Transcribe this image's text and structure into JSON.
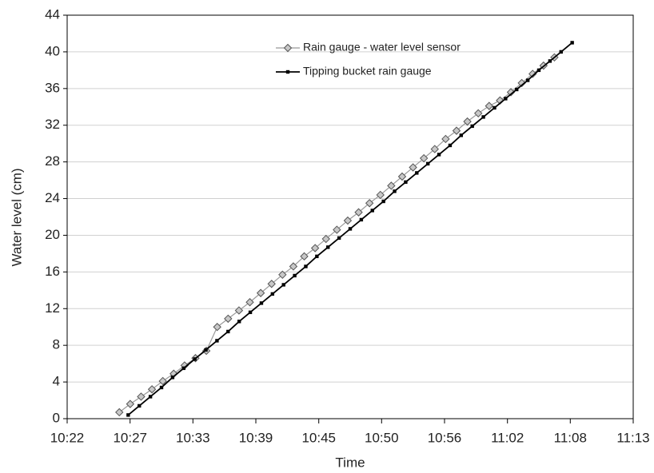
{
  "chart_data": {
    "type": "line",
    "x_label": "Time",
    "y_label": "Water level (cm)",
    "xlim": [
      622,
      673
    ],
    "xticks": [
      {
        "value": 622,
        "label": "10:22"
      },
      {
        "value": 627.67,
        "label": "10:27"
      },
      {
        "value": 633.33,
        "label": "10:33"
      },
      {
        "value": 639,
        "label": "10:39"
      },
      {
        "value": 644.67,
        "label": "10:45"
      },
      {
        "value": 650.33,
        "label": "10:50"
      },
      {
        "value": 656,
        "label": "10:56"
      },
      {
        "value": 661.67,
        "label": "11:02"
      },
      {
        "value": 667.33,
        "label": "11:08"
      },
      {
        "value": 673,
        "label": "11:13"
      }
    ],
    "ylim": [
      0,
      44
    ],
    "yticks": [
      0,
      4,
      8,
      12,
      16,
      20,
      24,
      28,
      32,
      36,
      40,
      44
    ],
    "grid": true,
    "legend": "upper center",
    "series": [
      {
        "name": "Rain gauge - water level sensor",
        "color": "#999999",
        "marker": "diamond",
        "x": [
          626.7,
          627.68,
          628.66,
          629.64,
          630.62,
          631.6,
          632.58,
          633.56,
          634.54,
          635.52,
          636.5,
          637.48,
          638.46,
          639.44,
          640.42,
          641.4,
          642.38,
          643.36,
          644.34,
          645.32,
          646.3,
          647.28,
          648.26,
          649.24,
          650.22,
          651.2,
          652.18,
          653.16,
          654.14,
          655.12,
          656.1,
          657.08,
          658.06,
          659.04,
          660.02,
          661.0,
          661.98,
          662.96,
          663.94,
          664.92,
          665.9
        ],
        "values": [
          0.7,
          1.6,
          2.4,
          3.2,
          4.1,
          4.9,
          5.8,
          6.6,
          7.4,
          10.0,
          10.9,
          11.8,
          12.7,
          13.7,
          14.7,
          15.7,
          16.6,
          17.7,
          18.6,
          19.6,
          20.6,
          21.6,
          22.5,
          23.5,
          24.4,
          25.4,
          26.4,
          27.4,
          28.4,
          29.4,
          30.5,
          31.4,
          32.4,
          33.3,
          34.1,
          34.7,
          35.6,
          36.6,
          37.6,
          38.5,
          39.4
        ]
      },
      {
        "name": "Tipping bucket rain gauge",
        "color": "#000000",
        "marker": "square",
        "x": [
          627.5,
          628.5,
          629.5,
          630.5,
          631.5,
          632.5,
          633.5,
          634.5,
          635.5,
          636.5,
          637.5,
          638.5,
          639.5,
          640.5,
          641.5,
          642.5,
          643.5,
          644.5,
          645.5,
          646.5,
          647.5,
          648.5,
          649.5,
          650.5,
          651.5,
          652.5,
          653.5,
          654.5,
          655.5,
          656.5,
          657.5,
          658.5,
          659.5,
          660.5,
          661.5,
          662.5,
          663.5,
          664.5,
          665.5,
          666.5,
          667.5
        ],
        "values": [
          0.4,
          1.4,
          2.4,
          3.4,
          4.5,
          5.5,
          6.5,
          7.5,
          8.5,
          9.5,
          10.6,
          11.6,
          12.6,
          13.6,
          14.6,
          15.6,
          16.6,
          17.7,
          18.7,
          19.7,
          20.7,
          21.7,
          22.7,
          23.7,
          24.8,
          25.8,
          26.8,
          27.8,
          28.8,
          29.8,
          30.9,
          31.9,
          32.9,
          33.9,
          34.9,
          35.9,
          36.9,
          38.0,
          39.0,
          40.0,
          41.0
        ]
      }
    ]
  }
}
